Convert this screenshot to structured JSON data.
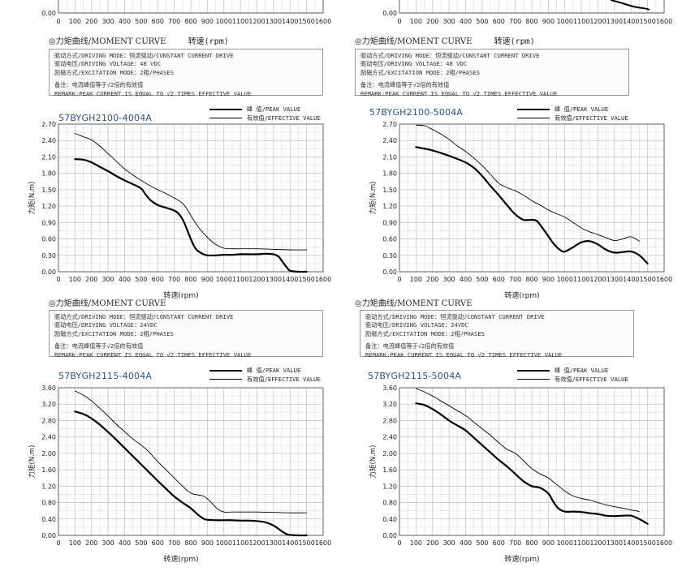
{
  "top_partial": {
    "left": {
      "x_ticks": [
        "0",
        "100",
        "200",
        "300",
        "400",
        "500",
        "600",
        "700",
        "800",
        "900",
        "1000",
        "1100",
        "1200",
        "1300",
        "1400",
        "1500",
        "1600"
      ],
      "y_label_visible": "0.00",
      "x_label": "转速(rpm)"
    },
    "right": {
      "x_ticks": [
        "0",
        "100",
        "200",
        "300",
        "400",
        "500",
        "600",
        "700",
        "800",
        "900",
        "1000",
        "1100",
        "1200",
        "1300",
        "1400",
        "1500",
        "1600"
      ],
      "y_label_visible": "0.00",
      "x_label": "转速(rpm)"
    }
  },
  "sections": [
    {
      "curve_title": "◎力矩曲线/MOMENT CURVE",
      "x_title": "转速(rpm)",
      "info_lines": [
        "驱动方式/DRIVING MODE：恒流驱动/CONSTANT CURRENT DRIVE",
        "驱动电压/DRIVING VOLTAGE：48 VDC",
        "励磁方式/EXCITATION MODE：2相/PHASES"
      ],
      "remark_cn": "备注：电流峰值等于√2倍的有效值",
      "remark_en": "REMARK:PEAK CURRENT IS EQUAL TO √2 TIMES EFFECTIVE VALUE"
    },
    {
      "curve_title": "◎力矩曲线/MOMENT CURVE",
      "x_title": "转速(rpm)",
      "info_lines": [
        "驱动方式/DRIVING MODE：恒流驱动/CONSTANT CURRENT DRIVE",
        "驱动电压/DRIVING VOLTAGE：48 VDC",
        "励磁方式/EXCITATION MODE：2相/PHASES"
      ],
      "remark_cn": "备注：电流峰值等于√2倍的有效值",
      "remark_en": "REMARK:PEAK CURRENT IS EQUAL TO √2 TIMES EFFECTIVE VALUE"
    },
    {
      "curve_title": "◎力矩曲线/MOMENT CURVE",
      "x_title": "转速(rpm)",
      "info_lines": [
        "驱动方式/DRIVING MODE：恒流驱动/CONSTANT CURRENT DRIVE",
        "驱动电压/DRIVING VOLTAGE：24VDC",
        "励磁方式/EXCITATION MODE：2相/PHASES"
      ],
      "remark_cn": "备注：电流峰值等于√2倍的有效值",
      "remark_en": "REMARK:PEAK CURRENT IS EQUAL TO √2 TIMES EFFECTIVE VALUE"
    },
    {
      "curve_title": "◎力矩曲线/MOMENT CURVE",
      "x_title": "转速(rpm)",
      "info_lines": [
        "驱动方式/DRIVING MODE：恒流驱动/CONSTANT CURRENT DRIVE",
        "驱动电压/DRIVING VOLTAGE：24VDC",
        "励磁方式/EXCITATION MODE：2相/PHASES"
      ],
      "remark_cn": "备注：电流峰值等于√2倍的有效值",
      "remark_en": "REMARK:PEAK CURRENT IS EQUAL TO √2 TIMES EFFECTIVE VALUE"
    }
  ],
  "legend": {
    "peak": "峰  值/PEAK VALUE",
    "effective": "有效值/EFFECTIVE VALUE"
  },
  "colors": {
    "model": "#2e4f8a",
    "grid": "#cfcfcf",
    "curve": "#000000"
  },
  "chart_data": [
    {
      "type": "line",
      "title": "57BYGH2100-4004A",
      "xlabel": "转速(rpm)",
      "ylabel": "力矩(N.m)",
      "xlim": [
        0,
        1600
      ],
      "ylim": [
        0,
        2.7
      ],
      "x_ticks": [
        "0",
        "100",
        "200",
        "300",
        "400",
        "500",
        "600",
        "700",
        "800",
        "900",
        "1000",
        "1100",
        "1200",
        "1300",
        "1400",
        "1500",
        "1600"
      ],
      "y_ticks": [
        "0.00",
        "0.30",
        "0.60",
        "0.90",
        "1.20",
        "1.50",
        "1.80",
        "2.10",
        "2.40",
        "2.70"
      ],
      "grid": true,
      "series": [
        {
          "name": "峰  值/PEAK VALUE",
          "width": "thick",
          "x": [
            100,
            150,
            200,
            250,
            300,
            350,
            400,
            450,
            500,
            530,
            560,
            600,
            650,
            700,
            730,
            760,
            800,
            830,
            870,
            900,
            950,
            1000,
            1050,
            1100,
            1150,
            1200,
            1250,
            1300,
            1330,
            1350,
            1380,
            1400,
            1450,
            1500
          ],
          "y": [
            2.06,
            2.05,
            2.0,
            1.92,
            1.84,
            1.75,
            1.67,
            1.6,
            1.52,
            1.4,
            1.3,
            1.22,
            1.17,
            1.12,
            1.05,
            0.9,
            0.6,
            0.42,
            0.33,
            0.3,
            0.3,
            0.31,
            0.31,
            0.32,
            0.32,
            0.32,
            0.33,
            0.32,
            0.28,
            0.2,
            0.08,
            0.02,
            0.0,
            0.0
          ]
        },
        {
          "name": "有效值/EFFECTIVE VALUE",
          "width": "thin",
          "x": [
            100,
            150,
            200,
            250,
            300,
            350,
            400,
            450,
            500,
            550,
            600,
            650,
            700,
            750,
            780,
            810,
            850,
            900,
            950,
            1000,
            1050,
            1100,
            1200,
            1300,
            1400,
            1500
          ],
          "y": [
            2.53,
            2.47,
            2.41,
            2.3,
            2.16,
            2.02,
            1.88,
            1.77,
            1.67,
            1.58,
            1.5,
            1.43,
            1.35,
            1.25,
            1.13,
            0.98,
            0.8,
            0.63,
            0.5,
            0.43,
            0.42,
            0.42,
            0.42,
            0.41,
            0.4,
            0.4
          ]
        }
      ]
    },
    {
      "type": "line",
      "title": "57BYGH2100-5004A",
      "xlabel": "转速(rpm)",
      "ylabel": "力矩(N.m)",
      "xlim": [
        0,
        1600
      ],
      "ylim": [
        0,
        2.7
      ],
      "x_ticks": [
        "0",
        "100",
        "200",
        "300",
        "400",
        "500",
        "600",
        "700",
        "800",
        "900",
        "1000",
        "1100",
        "1200",
        "1300",
        "1400",
        "1500",
        "1600"
      ],
      "y_ticks": [
        "0.00",
        "0.30",
        "0.60",
        "0.90",
        "1.20",
        "1.50",
        "1.80",
        "2.10",
        "2.40",
        "2.70"
      ],
      "grid": true,
      "series": [
        {
          "name": "峰  值/PEAK VALUE",
          "width": "thick",
          "x": [
            100,
            200,
            300,
            400,
            450,
            500,
            550,
            600,
            650,
            700,
            750,
            800,
            830,
            860,
            900,
            930,
            970,
            1000,
            1050,
            1100,
            1150,
            1200,
            1250,
            1300,
            1350,
            1400,
            1450,
            1500
          ],
          "y": [
            2.28,
            2.22,
            2.12,
            2.0,
            1.9,
            1.75,
            1.57,
            1.4,
            1.22,
            1.05,
            0.95,
            0.95,
            0.93,
            0.82,
            0.65,
            0.52,
            0.4,
            0.37,
            0.45,
            0.54,
            0.56,
            0.5,
            0.4,
            0.35,
            0.36,
            0.37,
            0.3,
            0.15
          ]
        },
        {
          "name": "有效值/EFFECTIVE VALUE",
          "width": "thin",
          "x": [
            100,
            150,
            200,
            250,
            300,
            350,
            400,
            450,
            500,
            550,
            600,
            650,
            700,
            750,
            800,
            850,
            900,
            950,
            1000,
            1050,
            1100,
            1150,
            1200,
            1250,
            1300,
            1350,
            1400,
            1450
          ],
          "y": [
            2.68,
            2.67,
            2.6,
            2.52,
            2.42,
            2.3,
            2.2,
            2.08,
            1.94,
            1.78,
            1.62,
            1.54,
            1.48,
            1.4,
            1.3,
            1.22,
            1.13,
            1.06,
            1.0,
            0.9,
            0.8,
            0.73,
            0.68,
            0.62,
            0.57,
            0.6,
            0.64,
            0.56
          ]
        }
      ]
    },
    {
      "type": "line",
      "title": "57BYGH2115-4004A",
      "xlabel": "转速(rpm)",
      "ylabel": "力矩(N.m)",
      "xlim": [
        0,
        1600
      ],
      "ylim": [
        0,
        3.6
      ],
      "x_ticks": [
        "0",
        "100",
        "200",
        "300",
        "400",
        "500",
        "600",
        "700",
        "800",
        "900",
        "1000",
        "1100",
        "1200",
        "1300",
        "1400",
        "1500",
        "1600"
      ],
      "y_ticks": [
        "0.00",
        "0.40",
        "0.80",
        "1.20",
        "1.60",
        "2.00",
        "2.40",
        "2.80",
        "3.20",
        "3.60"
      ],
      "grid": true,
      "series": [
        {
          "name": "峰  值/PEAK VALUE",
          "width": "thick",
          "x": [
            100,
            150,
            200,
            250,
            300,
            350,
            400,
            450,
            500,
            550,
            600,
            650,
            700,
            750,
            800,
            850,
            880,
            900,
            950,
            1000,
            1050,
            1100,
            1150,
            1200,
            1250,
            1300,
            1330,
            1350,
            1380,
            1400,
            1450,
            1500
          ],
          "y": [
            3.02,
            2.96,
            2.85,
            2.7,
            2.52,
            2.33,
            2.13,
            1.93,
            1.73,
            1.53,
            1.33,
            1.14,
            0.95,
            0.8,
            0.66,
            0.48,
            0.4,
            0.38,
            0.37,
            0.37,
            0.37,
            0.36,
            0.36,
            0.35,
            0.32,
            0.24,
            0.16,
            0.1,
            0.03,
            0.01,
            0.0,
            0.0
          ]
        },
        {
          "name": "有效值/EFFECTIVE VALUE",
          "width": "thin",
          "x": [
            100,
            150,
            200,
            250,
            300,
            350,
            400,
            450,
            500,
            530,
            560,
            600,
            650,
            700,
            750,
            800,
            850,
            880,
            920,
            960,
            1000,
            1050,
            1100,
            1200,
            1300,
            1400,
            1500
          ],
          "y": [
            3.52,
            3.42,
            3.28,
            3.1,
            2.91,
            2.71,
            2.53,
            2.35,
            2.2,
            2.1,
            1.98,
            1.8,
            1.6,
            1.4,
            1.2,
            1.03,
            0.98,
            0.95,
            0.82,
            0.65,
            0.57,
            0.57,
            0.57,
            0.57,
            0.56,
            0.55,
            0.55
          ]
        }
      ]
    },
    {
      "type": "line",
      "title": "57BYGH2115-5004A",
      "xlabel": "转速(rpm)",
      "ylabel": "力矩(N.m)",
      "xlim": [
        0,
        1600
      ],
      "ylim": [
        0,
        3.6
      ],
      "x_ticks": [
        "0",
        "100",
        "200",
        "300",
        "400",
        "500",
        "600",
        "700",
        "800",
        "900",
        "1000",
        "1100",
        "1200",
        "1300",
        "1400",
        "1500",
        "1600"
      ],
      "y_ticks": [
        "0.00",
        "0.40",
        "0.80",
        "1.20",
        "1.60",
        "2.00",
        "2.40",
        "2.80",
        "3.20",
        "3.60"
      ],
      "grid": true,
      "series": [
        {
          "name": "峰  值/PEAK VALUE",
          "width": "thick",
          "x": [
            100,
            150,
            200,
            250,
            300,
            350,
            400,
            450,
            500,
            550,
            600,
            650,
            700,
            750,
            800,
            850,
            900,
            930,
            960,
            1000,
            1050,
            1100,
            1150,
            1200,
            1250,
            1300,
            1350,
            1400,
            1450,
            1500
          ],
          "y": [
            3.22,
            3.18,
            3.08,
            2.95,
            2.8,
            2.68,
            2.56,
            2.38,
            2.2,
            2.02,
            1.84,
            1.68,
            1.5,
            1.32,
            1.2,
            1.16,
            1.02,
            0.82,
            0.66,
            0.58,
            0.58,
            0.57,
            0.54,
            0.52,
            0.48,
            0.47,
            0.48,
            0.48,
            0.4,
            0.28
          ]
        },
        {
          "name": "有效值/EFFECTIVE VALUE",
          "width": "thin",
          "x": [
            100,
            150,
            200,
            250,
            300,
            350,
            400,
            450,
            500,
            550,
            600,
            650,
            700,
            750,
            800,
            850,
            900,
            950,
            1000,
            1050,
            1100,
            1150,
            1200,
            1250,
            1300,
            1350,
            1400,
            1450
          ],
          "y": [
            3.58,
            3.5,
            3.4,
            3.28,
            3.16,
            3.04,
            2.92,
            2.76,
            2.6,
            2.44,
            2.26,
            2.1,
            2.0,
            1.82,
            1.63,
            1.5,
            1.4,
            1.24,
            1.08,
            0.96,
            0.9,
            0.86,
            0.8,
            0.74,
            0.7,
            0.66,
            0.62,
            0.58
          ]
        }
      ]
    }
  ]
}
